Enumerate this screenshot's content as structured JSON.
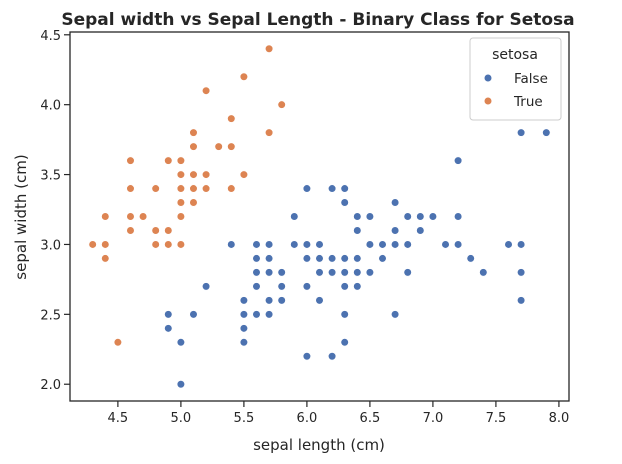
{
  "chart_data": {
    "type": "scatter",
    "title": "Sepal width vs Sepal Length - Binary Class for Setosa",
    "xlabel": "sepal length (cm)",
    "ylabel": "sepal width (cm)",
    "xlim": [
      4.12,
      8.08
    ],
    "ylim": [
      1.88,
      4.52
    ],
    "xticks": [
      4.5,
      5.0,
      5.5,
      6.0,
      6.5,
      7.0,
      7.5,
      8.0
    ],
    "xtick_labels": [
      "4.5",
      "5.0",
      "5.5",
      "6.0",
      "6.5",
      "7.0",
      "7.5",
      "8.0"
    ],
    "yticks": [
      2.0,
      2.5,
      3.0,
      3.5,
      4.0,
      4.5
    ],
    "ytick_labels": [
      "2.0",
      "2.5",
      "3.0",
      "3.5",
      "4.0",
      "4.5"
    ],
    "grid": false,
    "legend": {
      "title": "setosa",
      "placement": "top-right"
    },
    "series": [
      {
        "name": "False",
        "color": "#4c72b0",
        "points": [
          [
            4.9,
            2.5
          ],
          [
            4.9,
            2.4
          ],
          [
            5.0,
            2.3
          ],
          [
            5.0,
            2.0
          ],
          [
            5.1,
            2.5
          ],
          [
            5.2,
            2.7
          ],
          [
            5.4,
            3.0
          ],
          [
            5.5,
            2.6
          ],
          [
            5.5,
            2.5
          ],
          [
            5.5,
            2.4
          ],
          [
            5.5,
            2.3
          ],
          [
            5.6,
            3.0
          ],
          [
            5.6,
            2.9
          ],
          [
            5.6,
            2.8
          ],
          [
            5.6,
            2.7
          ],
          [
            5.6,
            2.5
          ],
          [
            5.7,
            3.0
          ],
          [
            5.7,
            2.9
          ],
          [
            5.7,
            2.8
          ],
          [
            5.7,
            2.6
          ],
          [
            5.7,
            2.5
          ],
          [
            5.8,
            2.8
          ],
          [
            5.8,
            2.7
          ],
          [
            5.8,
            2.6
          ],
          [
            5.9,
            3.2
          ],
          [
            5.9,
            3.0
          ],
          [
            6.0,
            3.4
          ],
          [
            6.0,
            3.0
          ],
          [
            6.0,
            2.9
          ],
          [
            6.0,
            2.7
          ],
          [
            6.0,
            2.2
          ],
          [
            6.1,
            3.0
          ],
          [
            6.1,
            2.9
          ],
          [
            6.1,
            2.8
          ],
          [
            6.1,
            2.6
          ],
          [
            6.2,
            3.4
          ],
          [
            6.2,
            2.9
          ],
          [
            6.2,
            2.8
          ],
          [
            6.2,
            2.2
          ],
          [
            6.3,
            3.4
          ],
          [
            6.3,
            3.3
          ],
          [
            6.3,
            2.9
          ],
          [
            6.3,
            2.8
          ],
          [
            6.3,
            2.7
          ],
          [
            6.3,
            2.5
          ],
          [
            6.3,
            2.3
          ],
          [
            6.4,
            3.2
          ],
          [
            6.4,
            3.1
          ],
          [
            6.4,
            2.9
          ],
          [
            6.4,
            2.8
          ],
          [
            6.4,
            2.7
          ],
          [
            6.5,
            3.2
          ],
          [
            6.5,
            3.0
          ],
          [
            6.5,
            2.8
          ],
          [
            6.6,
            3.0
          ],
          [
            6.6,
            2.9
          ],
          [
            6.7,
            3.3
          ],
          [
            6.7,
            3.1
          ],
          [
            6.7,
            3.0
          ],
          [
            6.7,
            2.5
          ],
          [
            6.8,
            3.2
          ],
          [
            6.8,
            3.0
          ],
          [
            6.8,
            2.8
          ],
          [
            6.9,
            3.2
          ],
          [
            6.9,
            3.1
          ],
          [
            7.0,
            3.2
          ],
          [
            7.1,
            3.0
          ],
          [
            7.2,
            3.6
          ],
          [
            7.2,
            3.2
          ],
          [
            7.2,
            3.0
          ],
          [
            7.3,
            2.9
          ],
          [
            7.4,
            2.8
          ],
          [
            7.6,
            3.0
          ],
          [
            7.7,
            3.8
          ],
          [
            7.7,
            3.0
          ],
          [
            7.7,
            2.8
          ],
          [
            7.7,
            2.6
          ],
          [
            7.9,
            3.8
          ]
        ]
      },
      {
        "name": "True",
        "color": "#dd8452",
        "points": [
          [
            4.3,
            3.0
          ],
          [
            4.4,
            3.2
          ],
          [
            4.4,
            3.0
          ],
          [
            4.4,
            2.9
          ],
          [
            4.5,
            2.3
          ],
          [
            4.6,
            3.6
          ],
          [
            4.6,
            3.4
          ],
          [
            4.6,
            3.2
          ],
          [
            4.6,
            3.1
          ],
          [
            4.7,
            3.2
          ],
          [
            4.8,
            3.4
          ],
          [
            4.8,
            3.1
          ],
          [
            4.8,
            3.0
          ],
          [
            4.9,
            3.6
          ],
          [
            4.9,
            3.1
          ],
          [
            4.9,
            3.0
          ],
          [
            5.0,
            3.6
          ],
          [
            5.0,
            3.5
          ],
          [
            5.0,
            3.4
          ],
          [
            5.0,
            3.3
          ],
          [
            5.0,
            3.2
          ],
          [
            5.0,
            3.0
          ],
          [
            5.1,
            3.8
          ],
          [
            5.1,
            3.7
          ],
          [
            5.1,
            3.5
          ],
          [
            5.1,
            3.4
          ],
          [
            5.1,
            3.3
          ],
          [
            5.2,
            4.1
          ],
          [
            5.2,
            3.5
          ],
          [
            5.2,
            3.4
          ],
          [
            5.3,
            3.7
          ],
          [
            5.4,
            3.9
          ],
          [
            5.4,
            3.7
          ],
          [
            5.4,
            3.4
          ],
          [
            5.5,
            4.2
          ],
          [
            5.5,
            3.5
          ],
          [
            5.7,
            4.4
          ],
          [
            5.7,
            3.8
          ],
          [
            5.8,
            4.0
          ]
        ]
      }
    ]
  }
}
